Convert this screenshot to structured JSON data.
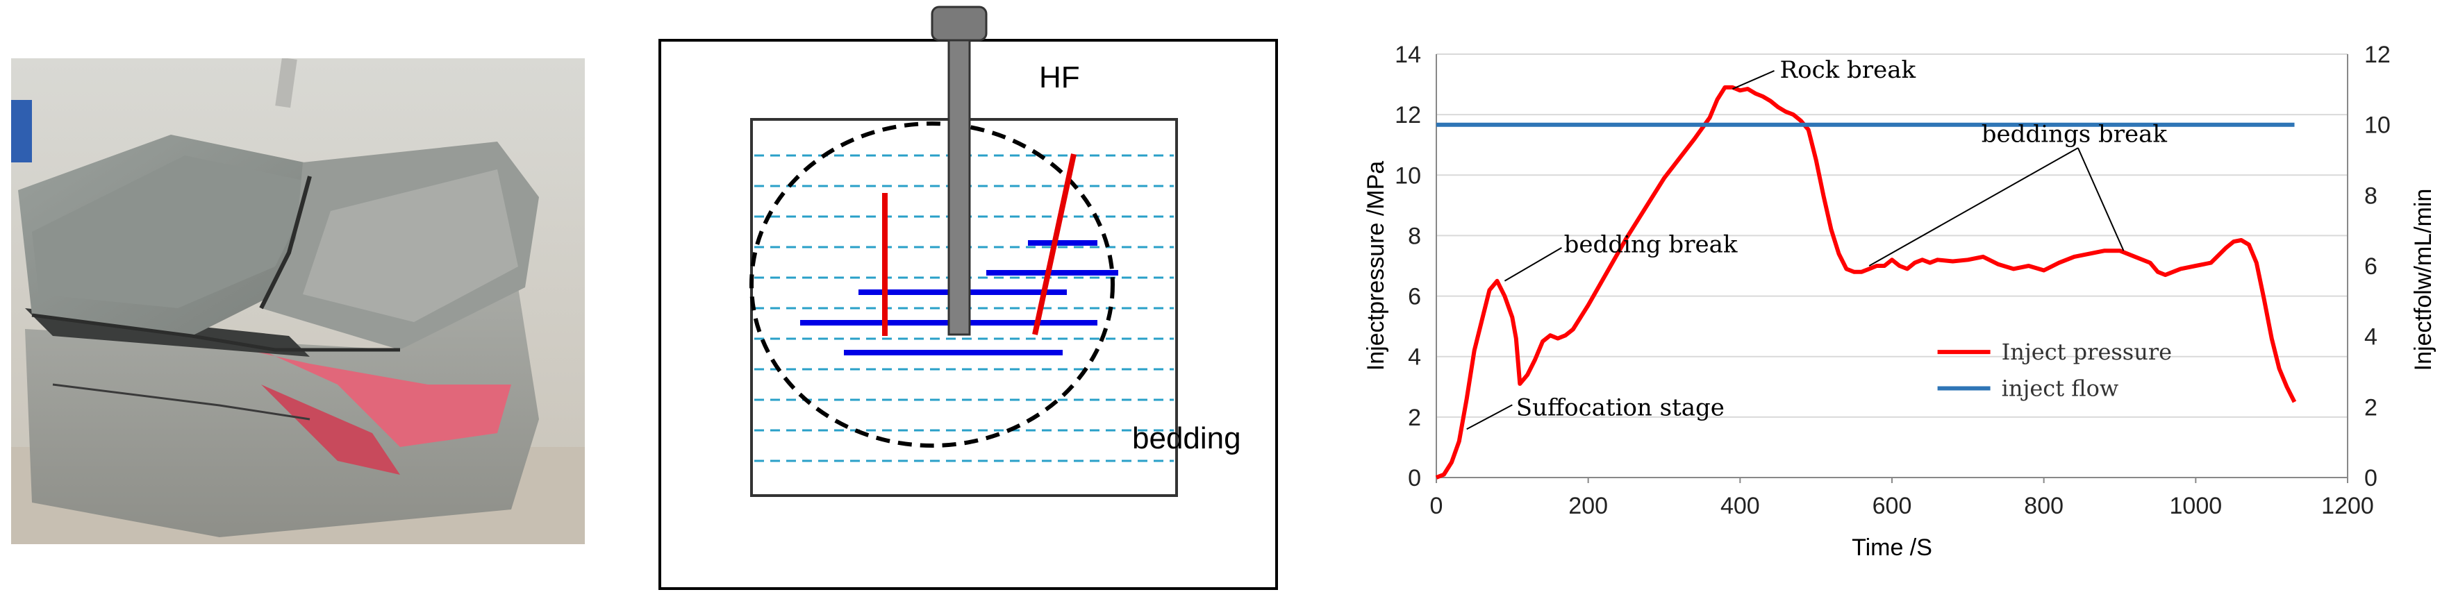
{
  "diagram": {
    "hf_label": "HF",
    "bedding_label": "bedding"
  },
  "chart_data": {
    "type": "line",
    "xlabel": "Time /S",
    "ylabel_left": "Injectpressure /MPa",
    "ylabel_right": "Injectfolw/mL/min",
    "xlim": [
      0,
      1200
    ],
    "ylim_left": [
      0,
      14
    ],
    "ylim_right": [
      0,
      12
    ],
    "x_ticks": [
      "0",
      "200",
      "400",
      "600",
      "800",
      "1000",
      "1200"
    ],
    "y_left_ticks": [
      "0",
      "2",
      "4",
      "6",
      "8",
      "10",
      "12",
      "14"
    ],
    "y_right_ticks": [
      "0",
      "2",
      "4",
      "6",
      "8",
      "10",
      "12"
    ],
    "grid": "horizontal",
    "legend_position": "lower-right",
    "series": [
      {
        "name": "Inject pressure",
        "axis": "left",
        "color": "#ff0000",
        "x": [
          0,
          10,
          20,
          30,
          40,
          50,
          60,
          70,
          80,
          90,
          100,
          105,
          110,
          120,
          130,
          140,
          150,
          160,
          170,
          180,
          200,
          250,
          300,
          340,
          360,
          370,
          380,
          390,
          400,
          410,
          420,
          430,
          440,
          450,
          460,
          470,
          480,
          490,
          500,
          510,
          520,
          530,
          540,
          550,
          560,
          570,
          580,
          590,
          600,
          610,
          620,
          630,
          640,
          650,
          660,
          680,
          700,
          720,
          740,
          760,
          780,
          800,
          820,
          840,
          860,
          880,
          900,
          920,
          940,
          950,
          960,
          980,
          1000,
          1020,
          1040,
          1050,
          1060,
          1070,
          1080,
          1090,
          1100,
          1110,
          1120,
          1130
        ],
        "values": [
          0,
          0.1,
          0.5,
          1.2,
          2.6,
          4.2,
          5.2,
          6.2,
          6.5,
          6.0,
          5.3,
          4.6,
          3.1,
          3.4,
          3.9,
          4.5,
          4.7,
          4.6,
          4.7,
          4.9,
          5.7,
          7.9,
          9.9,
          11.2,
          11.9,
          12.5,
          12.9,
          12.9,
          12.8,
          12.85,
          12.7,
          12.6,
          12.45,
          12.25,
          12.1,
          12.0,
          11.8,
          11.5,
          10.5,
          9.3,
          8.2,
          7.4,
          6.9,
          6.8,
          6.8,
          6.9,
          7.0,
          7.0,
          7.2,
          7.0,
          6.9,
          7.1,
          7.2,
          7.1,
          7.2,
          7.15,
          7.2,
          7.3,
          7.05,
          6.9,
          7.0,
          6.85,
          7.1,
          7.3,
          7.4,
          7.5,
          7.5,
          7.3,
          7.1,
          6.8,
          6.7,
          6.9,
          7.0,
          7.1,
          7.6,
          7.8,
          7.85,
          7.7,
          7.1,
          5.9,
          4.6,
          3.6,
          3.0,
          2.5
        ]
      },
      {
        "name": "inject flow",
        "axis": "right",
        "color": "#2e75b6",
        "x": [
          0,
          1130
        ],
        "values": [
          10,
          10
        ]
      }
    ],
    "annotations": [
      {
        "text": "Rock break",
        "x": 390,
        "y": 12.9
      },
      {
        "text": "beddings break",
        "x": 890,
        "y": 7.5
      },
      {
        "text": "bedding break",
        "x": 80,
        "y": 6.5
      },
      {
        "text": "Suffocation stage",
        "x": 40,
        "y": 1.6
      }
    ]
  }
}
